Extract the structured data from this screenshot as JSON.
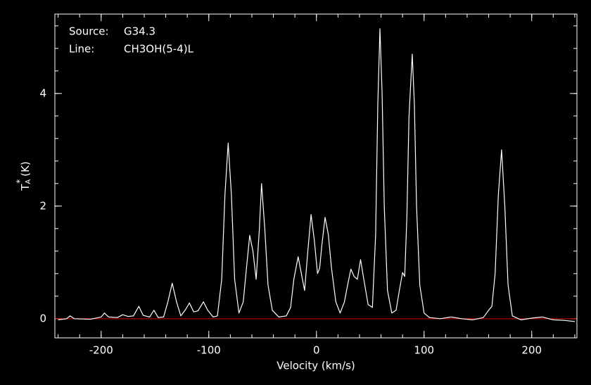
{
  "chart_data": {
    "type": "line",
    "annotations": [
      {
        "label": "Source:",
        "text": "G34.3"
      },
      {
        "label": "Line:",
        "text": "CH3OH(5-4)L"
      }
    ],
    "x_label": "Velocity (km/s)",
    "y_label": {
      "symbol": "T",
      "subscript": "A",
      "superscript": "*",
      "unit": "(K)"
    },
    "xlim": [
      -243,
      242
    ],
    "ylim": [
      -0.34,
      5.41
    ],
    "xticks": [
      -200,
      -100,
      0,
      100,
      200
    ],
    "yticks": [
      0,
      2,
      4
    ],
    "xminorticks": [
      -240,
      -220,
      -200,
      -180,
      -160,
      -140,
      -120,
      -100,
      -80,
      -60,
      -40,
      -20,
      0,
      20,
      40,
      60,
      80,
      100,
      120,
      140,
      160,
      180,
      200,
      220,
      240
    ],
    "yminorticks": [
      0,
      0.4,
      0.8,
      1.2,
      1.6,
      2,
      2.4,
      2.8,
      3.2,
      3.6,
      4,
      4.4,
      4.8,
      5.2
    ],
    "baseline": {
      "value": 0,
      "color": "#c00000"
    },
    "x": [
      -240,
      -232,
      -229,
      -225,
      -210,
      -200,
      -197,
      -193,
      -185,
      -180,
      -175,
      -170,
      -165,
      -161,
      -155,
      -151,
      -147,
      -142,
      -138,
      -134,
      -130,
      -126,
      -122,
      -118,
      -114,
      -110,
      -105,
      -101,
      -96,
      -92,
      -88,
      -85,
      -82,
      -79,
      -76,
      -72,
      -68,
      -65,
      -62,
      -59,
      -56,
      -53,
      -51,
      -48,
      -45,
      -41,
      -35,
      -28,
      -24,
      -21,
      -17,
      -14,
      -11,
      -8,
      -5,
      -2,
      1,
      3,
      5,
      8,
      11,
      14,
      18,
      22,
      26,
      29,
      32,
      35,
      38,
      41,
      44,
      48,
      52,
      55,
      57,
      59,
      61,
      63,
      66,
      70,
      74,
      77,
      80,
      82,
      84,
      86,
      89,
      91,
      93,
      96,
      100,
      105,
      115,
      125,
      135,
      145,
      155,
      160,
      163,
      166,
      169,
      172,
      175,
      178,
      182,
      190,
      200,
      210,
      220,
      230,
      240
    ],
    "series": [
      {
        "color": "#ffffff",
        "values": [
          -0.02,
          0.0,
          0.05,
          0.0,
          -0.01,
          0.03,
          0.1,
          0.03,
          0.02,
          0.07,
          0.04,
          0.05,
          0.22,
          0.06,
          0.03,
          0.15,
          0.02,
          0.03,
          0.3,
          0.63,
          0.3,
          0.05,
          0.15,
          0.28,
          0.12,
          0.14,
          0.3,
          0.15,
          0.03,
          0.05,
          0.7,
          2.2,
          3.12,
          2.2,
          0.7,
          0.1,
          0.3,
          0.9,
          1.48,
          1.2,
          0.7,
          1.6,
          2.4,
          1.6,
          0.6,
          0.15,
          0.03,
          0.05,
          0.2,
          0.7,
          1.1,
          0.8,
          0.5,
          1.2,
          1.85,
          1.4,
          0.8,
          0.9,
          1.3,
          1.8,
          1.5,
          0.9,
          0.3,
          0.1,
          0.3,
          0.6,
          0.88,
          0.75,
          0.7,
          1.05,
          0.7,
          0.25,
          0.2,
          1.5,
          3.8,
          5.15,
          4.0,
          2.0,
          0.5,
          0.1,
          0.15,
          0.5,
          0.82,
          0.75,
          1.8,
          3.6,
          4.7,
          3.8,
          2.0,
          0.6,
          0.1,
          0.02,
          0.0,
          0.03,
          0.0,
          -0.02,
          0.02,
          0.15,
          0.22,
          0.8,
          2.2,
          3.0,
          2.0,
          0.6,
          0.05,
          -0.02,
          0.01,
          0.03,
          -0.02,
          -0.03,
          -0.05
        ]
      }
    ]
  }
}
